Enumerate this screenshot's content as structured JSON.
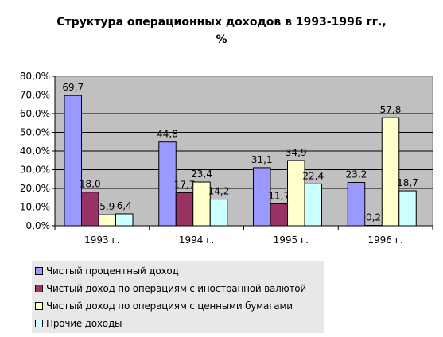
{
  "chart_data": {
    "type": "bar",
    "title_line1": "Структура операционных доходов в 1993-1996 гг.,",
    "title_line2": "%",
    "categories": [
      "1993 г.",
      "1994 г.",
      "1995 г.",
      "1996 г."
    ],
    "series": [
      {
        "name": "Чистый процентный доход",
        "values": [
          69.7,
          44.8,
          31.1,
          23.2
        ],
        "labels": [
          "69,7",
          "44,8",
          "31,1",
          "23,2"
        ],
        "color": "#9999ff"
      },
      {
        "name": "Чистый доход по операциям с иностранной валютой",
        "values": [
          18.0,
          17.7,
          11.7,
          0.2
        ],
        "labels": [
          "18,0",
          "17,7",
          "11,7",
          "0,2"
        ],
        "color": "#993366"
      },
      {
        "name": "Чистый доход по операциям с ценными бумагами",
        "values": [
          5.9,
          23.4,
          34.9,
          57.8
        ],
        "labels": [
          "5,9",
          "23,4",
          "34,9",
          "57,8"
        ],
        "color": "#ffffcc"
      },
      {
        "name": "Прочие доходы",
        "values": [
          6.4,
          14.2,
          22.4,
          18.7
        ],
        "labels": [
          "6,4",
          "14,2",
          "22,4",
          "18,7"
        ],
        "color": "#ccffff"
      }
    ],
    "yticks": [
      "0,0%",
      "10,0%",
      "20,0%",
      "30,0%",
      "40,0%",
      "50,0%",
      "60,0%",
      "70,0%",
      "80,0%"
    ],
    "ylim": [
      0,
      80
    ],
    "plot_background": "#c0c0c0",
    "grid": true,
    "legend_position": "bottom-left"
  }
}
